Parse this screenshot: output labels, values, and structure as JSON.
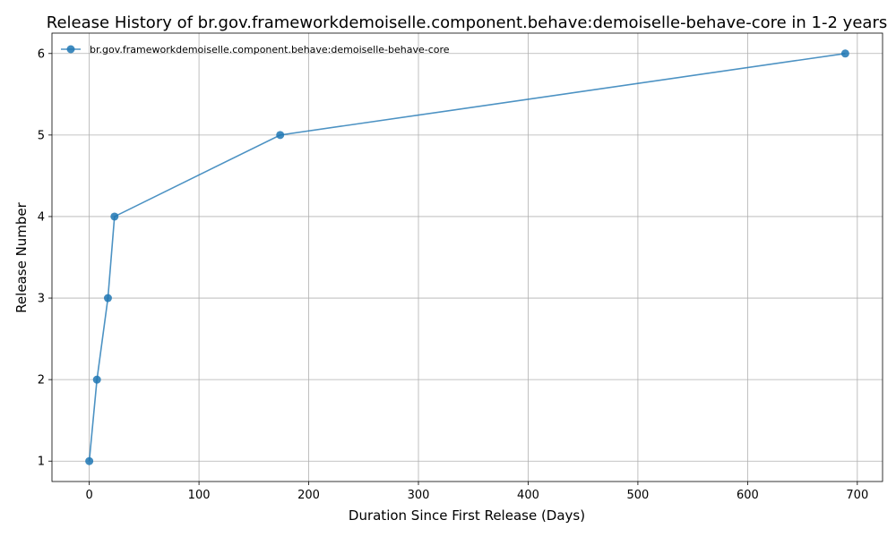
{
  "chart_data": {
    "type": "line",
    "title": "Release History of br.gov.frameworkdemoiselle.component.behave:demoiselle-behave-core in 1-2 years",
    "xlabel": "Duration Since First Release (Days)",
    "ylabel": "Release Number",
    "xlim": [
      -34,
      723
    ],
    "ylim": [
      0.75,
      6.25
    ],
    "x_ticks": [
      0,
      100,
      200,
      300,
      400,
      500,
      600,
      700
    ],
    "y_ticks": [
      1,
      2,
      3,
      4,
      5,
      6
    ],
    "grid": true,
    "legend_position": "top-left",
    "series": [
      {
        "name": "br.gov.frameworkdemoiselle.component.behave:demoiselle-behave-core",
        "color": "#1f77b4",
        "x": [
          0,
          7,
          17,
          23,
          174,
          689
        ],
        "y": [
          1,
          2,
          3,
          4,
          5,
          6
        ]
      }
    ]
  }
}
